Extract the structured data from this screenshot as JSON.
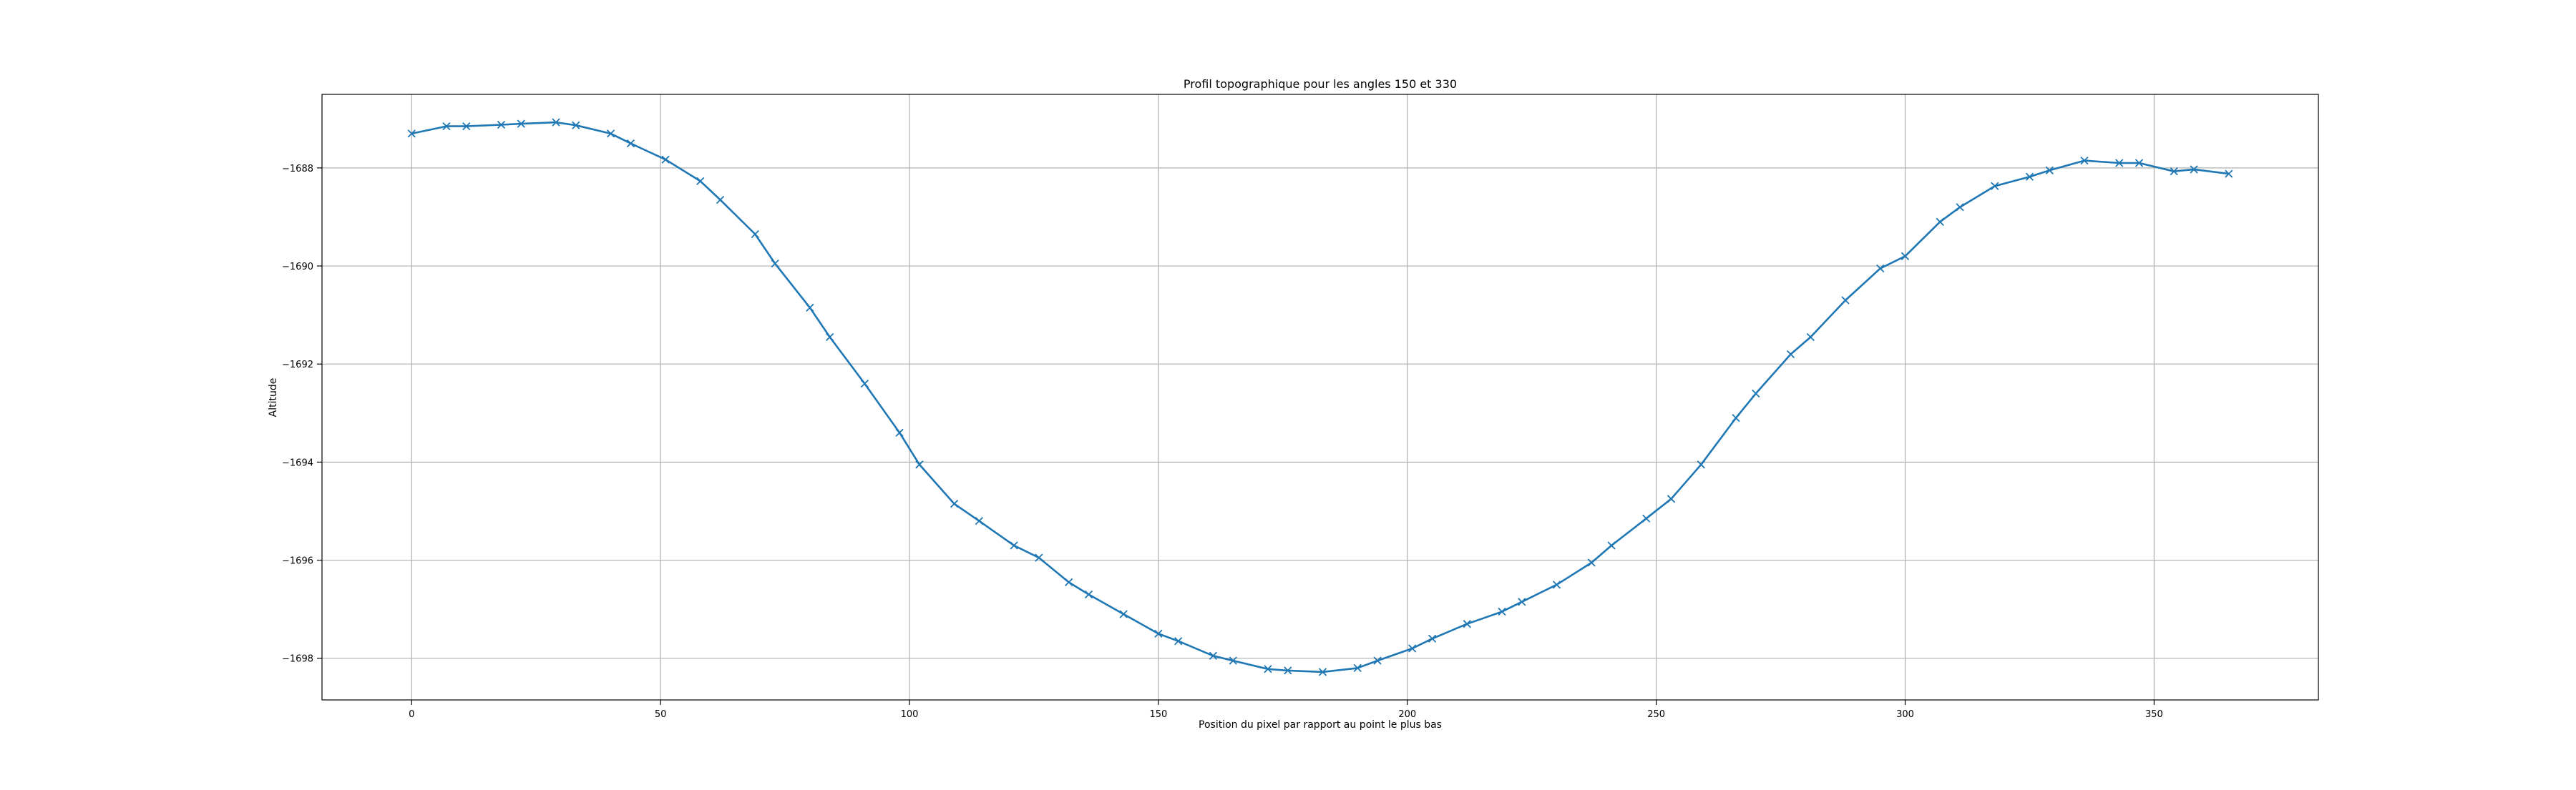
{
  "chart_data": {
    "type": "line",
    "title": "Profil topographique pour les angles 150 et 330",
    "xlabel": "Position du pixel par rapport au point le plus bas",
    "ylabel": "Altitude",
    "xlim": [
      -18,
      383
    ],
    "ylim": [
      -1698.85,
      -1686.5
    ],
    "xticks": [
      0,
      50,
      100,
      150,
      200,
      250,
      300,
      350
    ],
    "yticks": [
      -1688,
      -1690,
      -1692,
      -1694,
      -1696,
      -1698
    ],
    "xtick_labels": [
      "0",
      "50",
      "100",
      "150",
      "200",
      "250",
      "300",
      "350"
    ],
    "ytick_labels": [
      "−1688",
      "−1690",
      "−1692",
      "−1694",
      "−1696",
      "−1698"
    ],
    "grid": true,
    "legend": "none",
    "marker": "x",
    "color": "#1f77b4",
    "series": [
      {
        "x": [
          0,
          7,
          11,
          18,
          22,
          29,
          33,
          40,
          44,
          51,
          58,
          62,
          69,
          73,
          80,
          84,
          91,
          98,
          102,
          109,
          114,
          121,
          126,
          132,
          136,
          143,
          150,
          154,
          161,
          165,
          172,
          176,
          183,
          190,
          194,
          201,
          205,
          212,
          219,
          223,
          230,
          237,
          241,
          248,
          253,
          259,
          266,
          270,
          277,
          281,
          288,
          295,
          300,
          307,
          311,
          318,
          325,
          329,
          336,
          343,
          347,
          354,
          358,
          365
        ],
        "y": [
          -1687.3,
          -1687.15,
          -1687.15,
          -1687.12,
          -1687.1,
          -1687.07,
          -1687.13,
          -1687.3,
          -1687.5,
          -1687.83,
          -1688.27,
          -1688.65,
          -1689.35,
          -1689.95,
          -1690.85,
          -1691.45,
          -1692.4,
          -1693.4,
          -1694.05,
          -1694.85,
          -1695.2,
          -1695.7,
          -1695.95,
          -1696.45,
          -1696.7,
          -1697.1,
          -1697.5,
          -1697.65,
          -1697.95,
          -1698.05,
          -1698.22,
          -1698.25,
          -1698.28,
          -1698.2,
          -1698.05,
          -1697.8,
          -1697.6,
          -1697.3,
          -1697.05,
          -1696.85,
          -1696.5,
          -1696.05,
          -1695.7,
          -1695.15,
          -1694.75,
          -1694.05,
          -1693.1,
          -1692.6,
          -1691.8,
          -1691.45,
          -1690.7,
          -1690.05,
          -1689.8,
          -1689.1,
          -1688.8,
          -1688.37,
          -1688.18,
          -1688.05,
          -1687.85,
          -1687.9,
          -1687.9,
          -1688.07,
          -1688.03,
          -1688.12
        ]
      }
    ]
  }
}
